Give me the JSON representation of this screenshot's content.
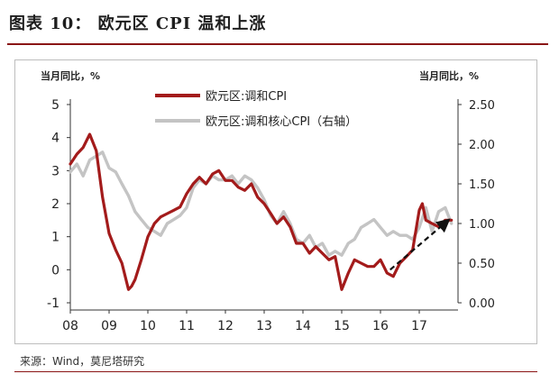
{
  "title": "图表 10： 欧元区 CPI 温和上涨",
  "source": "来源：Wind，莫尼塔研究",
  "chart_data": {
    "type": "line",
    "left_unit": "当月同比，%",
    "right_unit": "当月同比，%",
    "x_ticks": [
      "08",
      "09",
      "10",
      "11",
      "12",
      "13",
      "14",
      "15",
      "16",
      "17"
    ],
    "ylim_left": [
      -1,
      5
    ],
    "yticks_left": [
      "5",
      "4",
      "3",
      "2",
      "1",
      "0",
      "-1"
    ],
    "ylim_right": [
      0,
      2.5
    ],
    "yticks_right": [
      "2.50",
      "2.00",
      "1.50",
      "1.00",
      "0.50",
      "0.00"
    ],
    "series": [
      {
        "name": "欧元区:调和CPI",
        "axis": "left",
        "color": "#a31b1b",
        "x": [
          2008.0,
          2008.17,
          2008.33,
          2008.5,
          2008.67,
          2008.83,
          2009.0,
          2009.17,
          2009.33,
          2009.5,
          2009.58,
          2009.67,
          2009.83,
          2010.0,
          2010.17,
          2010.33,
          2010.5,
          2010.67,
          2010.83,
          2011.0,
          2011.17,
          2011.33,
          2011.5,
          2011.67,
          2011.83,
          2012.0,
          2012.17,
          2012.33,
          2012.5,
          2012.67,
          2012.83,
          2013.0,
          2013.17,
          2013.33,
          2013.5,
          2013.67,
          2013.83,
          2014.0,
          2014.17,
          2014.33,
          2014.5,
          2014.67,
          2014.83,
          2015.0,
          2015.17,
          2015.33,
          2015.5,
          2015.67,
          2015.83,
          2016.0,
          2016.17,
          2016.33,
          2016.5,
          2016.67,
          2016.83,
          2017.0,
          2017.08,
          2017.17,
          2017.33,
          2017.5,
          2017.67,
          2017.83
        ],
        "y": [
          3.2,
          3.5,
          3.7,
          4.1,
          3.6,
          2.2,
          1.1,
          0.6,
          0.2,
          -0.6,
          -0.5,
          -0.3,
          0.3,
          1.0,
          1.4,
          1.6,
          1.7,
          1.8,
          1.9,
          2.3,
          2.6,
          2.8,
          2.6,
          2.9,
          3.0,
          2.7,
          2.7,
          2.5,
          2.4,
          2.6,
          2.2,
          2.0,
          1.7,
          1.4,
          1.6,
          1.3,
          0.8,
          0.8,
          0.5,
          0.7,
          0.5,
          0.3,
          0.4,
          -0.6,
          -0.1,
          0.3,
          0.2,
          0.1,
          0.1,
          0.3,
          -0.1,
          -0.2,
          0.2,
          0.4,
          0.6,
          1.8,
          2.0,
          1.5,
          1.4,
          1.3,
          1.5,
          1.5
        ]
      },
      {
        "name": "欧元区:调和核心CPI（右轴）",
        "axis": "right",
        "color": "#c4c4c4",
        "x": [
          2008.0,
          2008.17,
          2008.33,
          2008.5,
          2008.67,
          2008.83,
          2009.0,
          2009.17,
          2009.33,
          2009.5,
          2009.67,
          2009.83,
          2010.0,
          2010.17,
          2010.33,
          2010.5,
          2010.67,
          2010.83,
          2011.0,
          2011.17,
          2011.33,
          2011.5,
          2011.67,
          2011.83,
          2012.0,
          2012.17,
          2012.33,
          2012.5,
          2012.67,
          2012.83,
          2013.0,
          2013.17,
          2013.33,
          2013.5,
          2013.67,
          2013.83,
          2014.0,
          2014.17,
          2014.33,
          2014.5,
          2014.67,
          2014.83,
          2015.0,
          2015.17,
          2015.33,
          2015.5,
          2015.67,
          2015.83,
          2016.0,
          2016.17,
          2016.33,
          2016.5,
          2016.67,
          2016.83,
          2017.0,
          2017.17,
          2017.33,
          2017.5,
          2017.67,
          2017.83
        ],
        "y": [
          1.65,
          1.75,
          1.6,
          1.8,
          1.85,
          1.9,
          1.7,
          1.65,
          1.5,
          1.35,
          1.15,
          1.05,
          0.95,
          0.9,
          0.85,
          1.0,
          1.05,
          1.1,
          1.2,
          1.45,
          1.55,
          1.5,
          1.6,
          1.55,
          1.55,
          1.6,
          1.5,
          1.6,
          1.55,
          1.45,
          1.3,
          1.1,
          1.0,
          1.15,
          1.0,
          0.8,
          0.75,
          0.85,
          0.7,
          0.75,
          0.6,
          0.65,
          0.6,
          0.75,
          0.8,
          0.95,
          1.0,
          1.05,
          0.95,
          0.85,
          0.9,
          0.85,
          0.85,
          0.8,
          0.95,
          1.2,
          0.9,
          1.15,
          1.2,
          1.0
        ]
      }
    ],
    "annotations": [
      {
        "type": "arrow",
        "style": "dashed",
        "color": "#111111",
        "from": {
          "x": 2016.25,
          "y": 0.0
        },
        "to": {
          "x": 2017.75,
          "y": 1.5
        }
      }
    ]
  }
}
